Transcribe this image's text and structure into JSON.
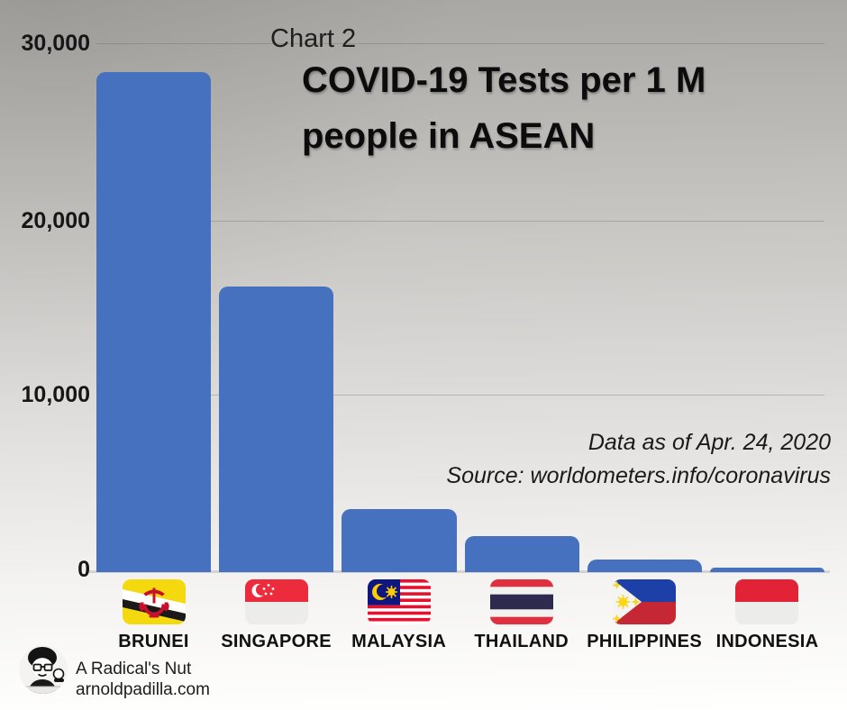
{
  "header": {
    "chart_number": "Chart 2",
    "title": "COVID-19 Tests per 1 M\npeople in ASEAN"
  },
  "annotations": {
    "data_note": "Data as of Apr. 24, 2020",
    "source_note": "Source: worldometers.info/coronavirus"
  },
  "chart_data": {
    "type": "bar",
    "title": "COVID-19 Tests per 1 M people in ASEAN",
    "categories": [
      "BRUNEI",
      "SINGAPORE",
      "MALAYSIA",
      "THAILAND",
      "PHILIPPINES",
      "INDONESIA"
    ],
    "values": [
      28400,
      16250,
      3600,
      2050,
      700,
      250
    ],
    "xlabel": "",
    "ylabel": "",
    "ylim": [
      0,
      30000
    ],
    "yticks": [
      30000,
      20000,
      10000,
      0
    ],
    "ytick_labels": [
      "30,000",
      "20,000",
      "10,000",
      "0"
    ],
    "grid": true,
    "legend": false,
    "bar_color": "#4571BF",
    "flag_icons": [
      "brunei-flag",
      "singapore-flag",
      "malaysia-flag",
      "thailand-flag",
      "philippines-flag",
      "indonesia-flag"
    ]
  },
  "footer": {
    "byline": "A Radical's Nut",
    "website": "arnoldpadilla.com",
    "avatar_icon": "caricature-avatar"
  }
}
